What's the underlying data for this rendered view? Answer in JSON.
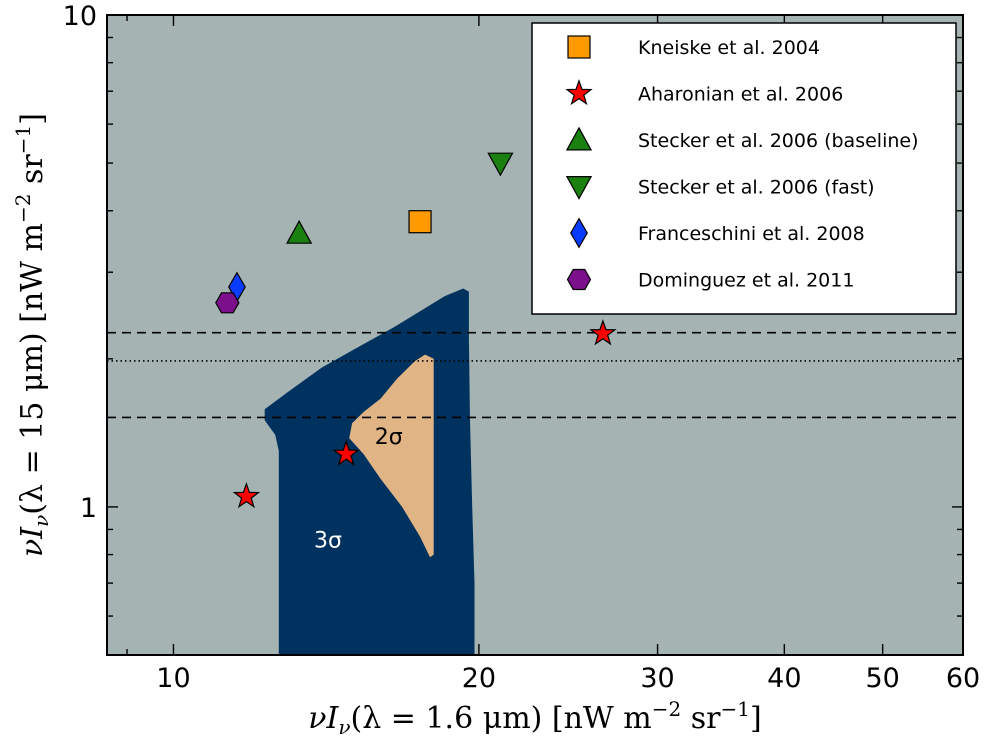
{
  "chart_data": {
    "type": "scatter",
    "xscale": "log",
    "yscale": "log",
    "xlim": [
      8.6,
      60
    ],
    "ylim": [
      0.5,
      10
    ],
    "x_ticks": [
      {
        "value": 10,
        "label": "10"
      },
      {
        "value": 20,
        "label": "20"
      },
      {
        "value": 30,
        "label": "30"
      },
      {
        "value": 40,
        "label": "40"
      },
      {
        "value": 50,
        "label": "50"
      },
      {
        "value": 60,
        "label": "60"
      }
    ],
    "y_ticks": [
      {
        "value": 1,
        "label": "1"
      },
      {
        "value": 10,
        "label": "10"
      }
    ],
    "xlabel_parts": {
      "pre": "νI",
      "sub": "ν",
      "mid": "(λ = 1.6 μm) [nW m",
      "sup": "−2",
      "post": " sr",
      "sup2": "−1",
      "end": "]"
    },
    "ylabel_parts": {
      "pre": "νI",
      "sub": "ν",
      "mid": "(λ = 15 μm) [nW m",
      "sup": "−2",
      "post": " sr",
      "sup2": "−1",
      "end": "]"
    },
    "background_color": "#a5b3b2",
    "legend_position": "top-right",
    "series": [
      {
        "name": "Kneiske et al. 2004",
        "marker": "square",
        "color": "#ff9a00",
        "points": [
          [
            17.5,
            3.8
          ]
        ]
      },
      {
        "name": "Aharonian et al. 2006",
        "marker": "star",
        "color": "#ff0000",
        "points": [
          [
            11.8,
            1.05
          ],
          [
            14.8,
            1.28
          ],
          [
            26.5,
            2.25
          ]
        ]
      },
      {
        "name": "Stecker et al. 2006 (baseline)",
        "marker": "triangle-up",
        "color": "#1a8010",
        "points": [
          [
            13.3,
            3.6
          ]
        ]
      },
      {
        "name": "Stecker et al. 2006 (fast)",
        "marker": "triangle-down",
        "color": "#1a8010",
        "points": [
          [
            21.0,
            5.0
          ]
        ]
      },
      {
        "name": "Franceschini et al. 2008",
        "marker": "diamond",
        "color": "#0a3cff",
        "points": [
          [
            11.55,
            2.8
          ]
        ]
      },
      {
        "name": "Dominguez et al. 2011",
        "marker": "hexagon",
        "color": "#7c0f8a",
        "points": [
          [
            11.3,
            2.6
          ]
        ]
      }
    ],
    "hlines": [
      {
        "y": 2.26,
        "style": "dashed"
      },
      {
        "y": 1.98,
        "style": "dotted"
      },
      {
        "y": 1.52,
        "style": "dashed"
      }
    ],
    "regions": [
      {
        "label": "3σ",
        "label_at": [
          14.2,
          0.85
        ],
        "label_color": "#ffffff",
        "color": "#00325f",
        "polygon": [
          [
            12.7,
            0.5
          ],
          [
            12.7,
            1.3
          ],
          [
            12.6,
            1.4
          ],
          [
            12.3,
            1.5
          ],
          [
            12.3,
            1.58
          ],
          [
            13.0,
            1.72
          ],
          [
            14.0,
            1.92
          ],
          [
            15.0,
            2.08
          ],
          [
            16.5,
            2.32
          ],
          [
            17.5,
            2.5
          ],
          [
            18.5,
            2.68
          ],
          [
            19.3,
            2.78
          ],
          [
            19.55,
            2.74
          ],
          [
            19.55,
            2.2
          ],
          [
            19.6,
            1.5
          ],
          [
            19.7,
            1.0
          ],
          [
            19.8,
            0.7
          ],
          [
            19.8,
            0.5
          ]
        ]
      },
      {
        "label": "2σ",
        "label_at": [
          16.3,
          1.38
        ],
        "label_color": "#000000",
        "color": "#e0b484",
        "polygon": [
          [
            14.9,
            1.38
          ],
          [
            15.0,
            1.48
          ],
          [
            15.4,
            1.56
          ],
          [
            16.0,
            1.66
          ],
          [
            16.6,
            1.82
          ],
          [
            17.3,
            1.98
          ],
          [
            17.7,
            2.04
          ],
          [
            18.05,
            2.0
          ],
          [
            18.05,
            1.4
          ],
          [
            18.05,
            1.0
          ],
          [
            18.05,
            0.8
          ],
          [
            17.9,
            0.79
          ],
          [
            17.5,
            0.87
          ],
          [
            16.8,
            1.0
          ],
          [
            16.0,
            1.14
          ],
          [
            15.4,
            1.28
          ]
        ]
      }
    ]
  }
}
